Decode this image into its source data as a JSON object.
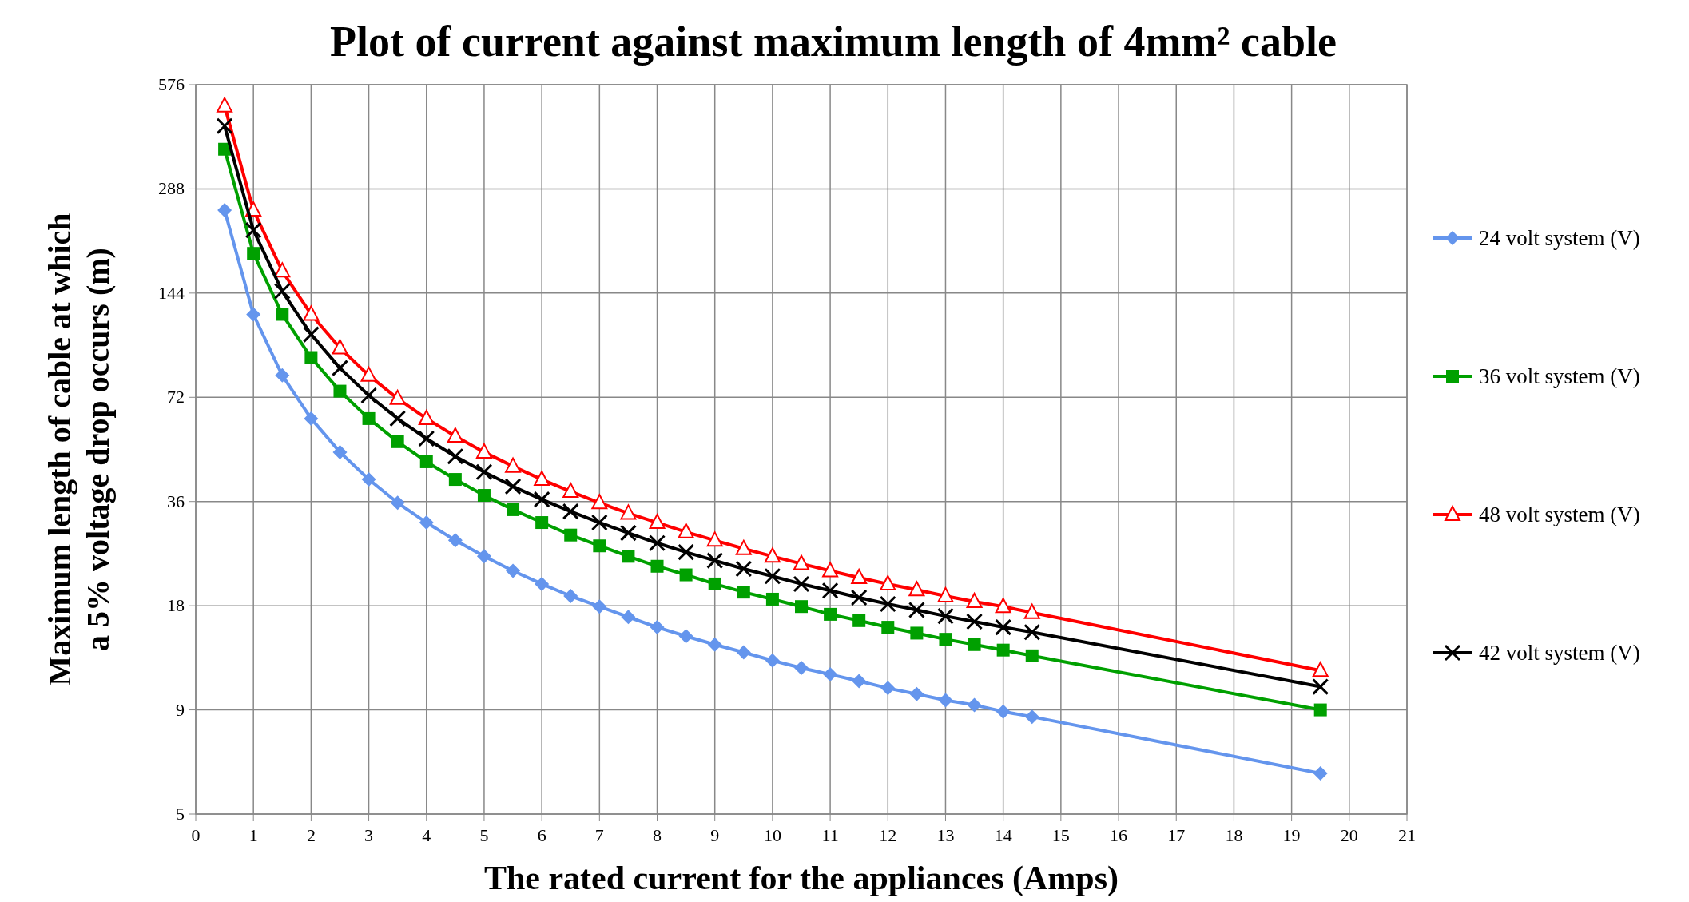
{
  "chart_data": {
    "type": "line",
    "title": "Plot of current against maximum length of 4mm² cable",
    "xlabel": "The rated current for the appliances (Amps)",
    "ylabel": "Maximum length of cable at which a 5% voltage drop occurs  (m)",
    "x": [
      0.5,
      1,
      1.5,
      2,
      2.5,
      3,
      3.5,
      4,
      4.5,
      5,
      5.5,
      6,
      6.5,
      7,
      7.5,
      8,
      8.5,
      9,
      9.5,
      10,
      10.5,
      11,
      11.5,
      12,
      12.5,
      13,
      13.5,
      14,
      14.5,
      19.5
    ],
    "series": [
      {
        "name": "24 volt system (V)",
        "color": "#6495ed",
        "marker": "diamond",
        "values": [
          250,
          125,
          83.3,
          62.5,
          50,
          41.7,
          35.7,
          31.3,
          27.8,
          25,
          22.7,
          20.8,
          19.2,
          17.9,
          16.7,
          15.6,
          14.7,
          13.9,
          13.2,
          12.5,
          11.9,
          11.4,
          10.9,
          10.4,
          10,
          9.6,
          9.3,
          8.9,
          8.6,
          5.9
        ]
      },
      {
        "name": "36 volt system (V)",
        "color": "#00a000",
        "marker": "square",
        "values": [
          375,
          187.5,
          125,
          93.8,
          75,
          62.5,
          53.6,
          46.9,
          41.7,
          37.5,
          34.1,
          31.3,
          28.8,
          26.8,
          25,
          23.4,
          22.1,
          20.8,
          19.7,
          18.8,
          17.9,
          17,
          16.3,
          15.6,
          15,
          14.4,
          13.9,
          13.4,
          12.9,
          9
        ]
      },
      {
        "name": "48 volt system (V)",
        "color": "#ff0000",
        "marker": "triangle",
        "values": [
          500,
          250,
          166.7,
          125,
          100,
          83.3,
          71.4,
          62.5,
          55.6,
          50,
          45.5,
          41.7,
          38.5,
          35.7,
          33.3,
          31.3,
          29.4,
          27.8,
          26.3,
          25,
          23.8,
          22.7,
          21.7,
          20.8,
          20,
          19.2,
          18.5,
          17.9,
          17.2,
          11.7
        ]
      },
      {
        "name": "42 volt system (V)",
        "color": "#000000",
        "marker": "cross",
        "values": [
          437.5,
          218.8,
          145.8,
          109.4,
          87.5,
          72.9,
          62.5,
          54.7,
          48.6,
          43.8,
          39.8,
          36.5,
          33.7,
          31.3,
          29.2,
          27.3,
          25.7,
          24.3,
          23,
          21.9,
          20.8,
          19.9,
          19,
          18.2,
          17.5,
          16.8,
          16.2,
          15.6,
          15.1,
          10.5
        ]
      }
    ],
    "xlim": [
      0,
      21
    ],
    "xticks": [
      0,
      1,
      2,
      3,
      4,
      5,
      6,
      7,
      8,
      9,
      10,
      11,
      12,
      13,
      14,
      15,
      16,
      17,
      18,
      19,
      20,
      21
    ],
    "ylim": [
      4.5,
      576
    ],
    "yticks": [
      {
        "value": 4.5,
        "label": "5"
      },
      9,
      18,
      36,
      72,
      144,
      288,
      576
    ],
    "log": "y",
    "grid": true,
    "legend": "right",
    "line_style": "solid"
  }
}
